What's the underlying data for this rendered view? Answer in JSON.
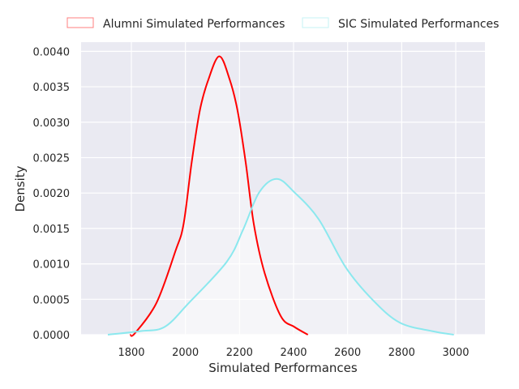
{
  "chart_data": {
    "type": "line",
    "title": "",
    "xlabel": "Simulated Performances",
    "ylabel": "Density",
    "xlim": [
      1614,
      3108
    ],
    "ylim": [
      0,
      0.00413
    ],
    "xticks": [
      1800,
      2000,
      2200,
      2400,
      2600,
      2800,
      3000
    ],
    "xtick_labels": [
      "1800",
      "2000",
      "2200",
      "2400",
      "2600",
      "2800",
      "3000"
    ],
    "yticks": [
      0,
      0.0005,
      0.001,
      0.0015,
      0.002,
      0.0025,
      0.003,
      0.0035,
      0.004
    ],
    "ytick_labels": [
      "0.0000",
      "0.0005",
      "0.0010",
      "0.0015",
      "0.0020",
      "0.0025",
      "0.0030",
      "0.0035",
      "0.0040"
    ],
    "grid": true,
    "legend_position": "top-center-outside",
    "series": [
      {
        "name": "Alumni Simulated Performances",
        "color": "#ff0000",
        "x": [
          1795,
          1813,
          1893,
          1963,
          1993,
          2023,
          2053,
          2083,
          2125,
          2163,
          2193,
          2223,
          2253,
          2293,
          2353,
          2403,
          2453
        ],
        "y": [
          0,
          2e-05,
          0.00045,
          0.00118,
          0.00156,
          0.00243,
          0.00316,
          0.00358,
          0.00393,
          0.00361,
          0.00316,
          0.00243,
          0.00156,
          0.00087,
          0.00026,
          0.00011,
          0
        ]
      },
      {
        "name": "SIC Simulated Performances",
        "color": "#8be8ee",
        "x": [
          1713,
          1833,
          1923,
          2013,
          2153,
          2213,
          2273,
          2338,
          2403,
          2493,
          2593,
          2693,
          2793,
          2913,
          2993
        ],
        "y": [
          0,
          5e-05,
          0.00011,
          0.00045,
          0.00103,
          0.00148,
          0.00201,
          0.0022,
          0.00201,
          0.00163,
          0.00095,
          0.00049,
          0.00017,
          5e-05,
          0
        ]
      }
    ]
  }
}
